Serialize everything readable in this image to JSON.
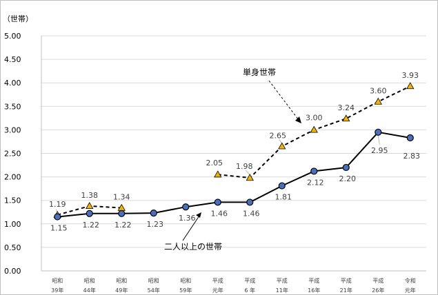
{
  "chart_data": {
    "type": "line",
    "ylabel": "（世帯）",
    "ylim": [
      0,
      5
    ],
    "yticks": [
      "0.00",
      "0.50",
      "1.00",
      "1.50",
      "2.00",
      "2.50",
      "3.00",
      "3.50",
      "4.00",
      "4.50",
      "5.00"
    ],
    "categories": [
      [
        "昭和",
        "39年"
      ],
      [
        "昭和",
        "44年"
      ],
      [
        "昭和",
        "49年"
      ],
      [
        "昭和",
        "54年"
      ],
      [
        "昭和",
        "59年"
      ],
      [
        "平成",
        "元年"
      ],
      [
        "平成",
        "6 年"
      ],
      [
        "平成",
        "11年"
      ],
      [
        "平成",
        "16年"
      ],
      [
        "平成",
        "21年"
      ],
      [
        "平成",
        "26年"
      ],
      [
        "令和",
        "元年"
      ]
    ],
    "grid": true,
    "series": [
      {
        "name": "単身世帯",
        "style": "dashed",
        "marker": "triangle",
        "color": "#000000",
        "marker_fill": "#f0b400",
        "values": [
          1.19,
          1.38,
          1.34,
          null,
          null,
          2.05,
          1.98,
          2.65,
          3.0,
          3.24,
          3.6,
          3.93
        ],
        "labels": [
          "1.19",
          "1.38",
          "1.34",
          null,
          null,
          "2.05",
          "1.98",
          "2.65",
          "3.00",
          "3.24",
          "3.60",
          "3.93"
        ]
      },
      {
        "name": "二人以上の世帯",
        "style": "solid",
        "marker": "circle",
        "color": "#000000",
        "marker_fill": "#4a6fba",
        "values": [
          1.15,
          1.22,
          1.22,
          1.23,
          1.36,
          1.46,
          1.46,
          1.81,
          2.12,
          2.2,
          2.95,
          2.83
        ],
        "labels": [
          "1.15",
          "1.22",
          "1.22",
          "1.23",
          "1.36",
          "1.46",
          "1.46",
          "1.81",
          "2.12",
          "2.20",
          "2.95",
          "2.83"
        ]
      }
    ]
  }
}
